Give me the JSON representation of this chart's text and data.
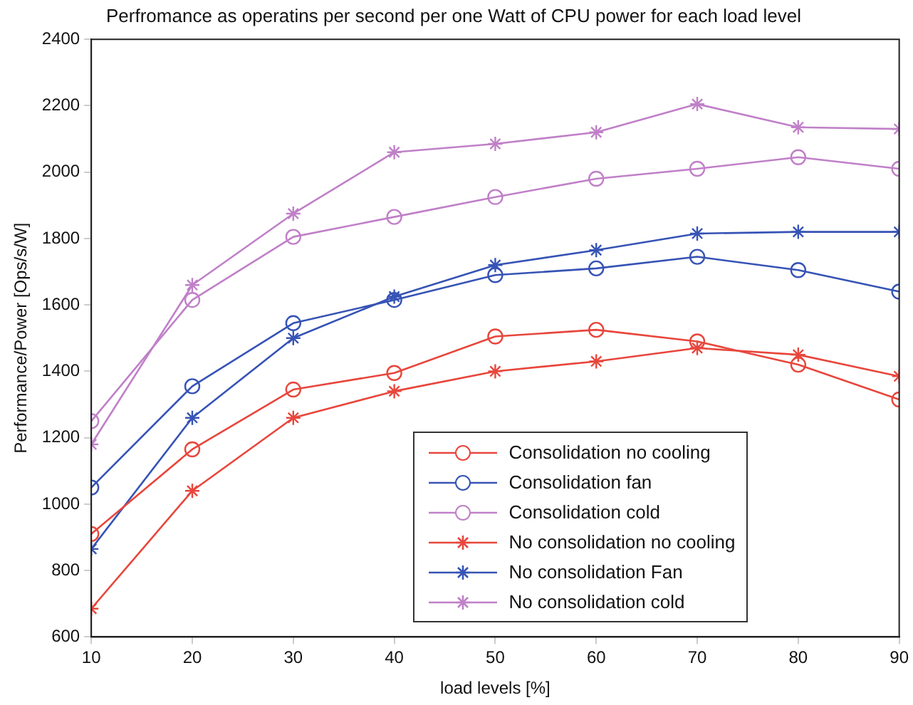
{
  "chart_data": {
    "type": "line",
    "title": "Perfromance as operatins per second per one Watt of CPU power for each load level",
    "xlabel": "load levels [%]",
    "ylabel": "Performance/Power [Ops/s/W]",
    "x": [
      10,
      20,
      30,
      40,
      50,
      60,
      70,
      80,
      90
    ],
    "xlim": [
      10,
      90
    ],
    "xticks": [
      10,
      20,
      30,
      40,
      50,
      60,
      70,
      80,
      90
    ],
    "ylim": [
      600,
      2400
    ],
    "yticks": [
      600,
      800,
      1000,
      1200,
      1400,
      1600,
      1800,
      2000,
      2200,
      2400
    ],
    "grid": false,
    "legend": "bottom",
    "line_style": "solid",
    "series": [
      {
        "name": "Consolidation no cooling",
        "color": "#e8463c",
        "marker": "circle",
        "values": [
          910,
          1165,
          1345,
          1395,
          1505,
          1525,
          1490,
          1420,
          1315
        ]
      },
      {
        "name": "Consolidation fan",
        "color": "#3653b5",
        "marker": "circle",
        "values": [
          1050,
          1355,
          1545,
          1615,
          1690,
          1710,
          1745,
          1705,
          1640
        ]
      },
      {
        "name": "Consolidation cold",
        "color": "#c080c8",
        "marker": "circle",
        "values": [
          1250,
          1615,
          1805,
          1865,
          1925,
          1980,
          2010,
          2045,
          2010
        ]
      },
      {
        "name": "No consolidation no cooling",
        "color": "#e8463c",
        "marker": "cross",
        "values": [
          685,
          1040,
          1260,
          1340,
          1400,
          1430,
          1470,
          1450,
          1385
        ]
      },
      {
        "name": "No consolidation Fan",
        "color": "#3653b5",
        "marker": "cross",
        "values": [
          865,
          1260,
          1500,
          1625,
          1720,
          1765,
          1815,
          1820,
          1820
        ]
      },
      {
        "name": "No consolidation cold",
        "color": "#c080c8",
        "marker": "cross",
        "values": [
          1180,
          1660,
          1875,
          2060,
          2085,
          2120,
          2205,
          2135,
          2130
        ]
      }
    ]
  }
}
